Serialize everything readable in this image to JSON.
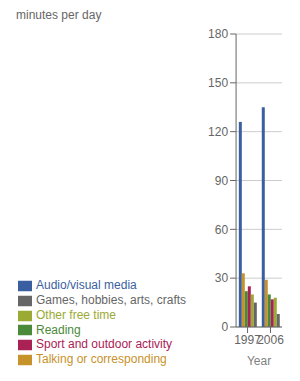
{
  "chart_data": {
    "type": "bar",
    "categories": [
      "1997",
      "2006"
    ],
    "series": [
      {
        "name": "Audio/visual media",
        "color": "#3a5fa0",
        "values": [
          126,
          135
        ]
      },
      {
        "name": "Talking or corresponding",
        "color": "#c8922a",
        "values": [
          33,
          29
        ]
      },
      {
        "name": "Reading",
        "color": "#4a8a3a",
        "values": [
          22,
          20
        ]
      },
      {
        "name": "Sport and outdoor activity",
        "color": "#aa2255",
        "values": [
          25,
          17
        ]
      },
      {
        "name": "Other free time",
        "color": "#9aaa33",
        "values": [
          20,
          18
        ]
      },
      {
        "name": "Games, hobbies, arts, crafts",
        "color": "#666666",
        "values": [
          15,
          8
        ]
      }
    ],
    "xlabel": "Year",
    "ylabel": "minutes per day",
    "ylim": [
      0,
      180
    ],
    "yticks": [
      0,
      30,
      60,
      90,
      120,
      150,
      180
    ],
    "grid": true,
    "legend": "bottom"
  }
}
